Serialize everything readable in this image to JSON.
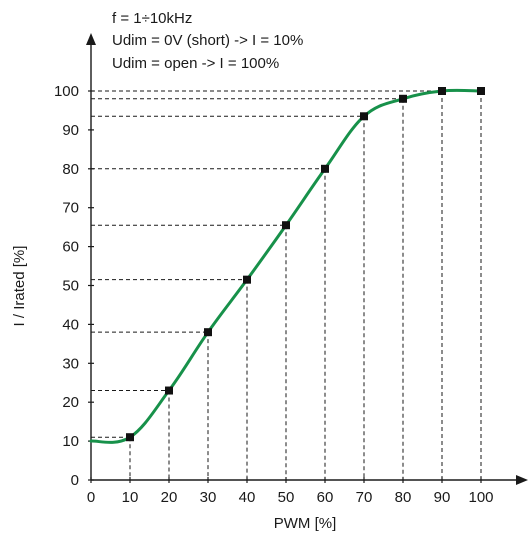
{
  "chart_data": {
    "type": "line",
    "annotations": [
      "f = 1÷10kHz",
      "Udim = 0V (short) -> I = 10%",
      "Udim = open -> I = 100%"
    ],
    "xlabel": "PWM [%]",
    "ylabel": "I / Irated [%]",
    "xlim": [
      0,
      100
    ],
    "ylim": [
      0,
      100
    ],
    "xticks": [
      0,
      10,
      20,
      30,
      40,
      50,
      60,
      70,
      80,
      90,
      100
    ],
    "yticks": [
      0,
      10,
      20,
      30,
      40,
      50,
      60,
      70,
      80,
      90,
      100
    ],
    "series": [
      {
        "color": "#17914a",
        "marker_color": "#111111",
        "line_start": {
          "x": 0,
          "y": 10
        },
        "points": [
          {
            "x": 10,
            "y": 11
          },
          {
            "x": 20,
            "y": 23
          },
          {
            "x": 30,
            "y": 38
          },
          {
            "x": 40,
            "y": 51.5
          },
          {
            "x": 50,
            "y": 65.5
          },
          {
            "x": 60,
            "y": 80
          },
          {
            "x": 70,
            "y": 93.5
          },
          {
            "x": 80,
            "y": 98
          },
          {
            "x": 90,
            "y": 100
          },
          {
            "x": 100,
            "y": 100
          }
        ]
      }
    ],
    "guide_lines": "dashed",
    "grid": false
  }
}
